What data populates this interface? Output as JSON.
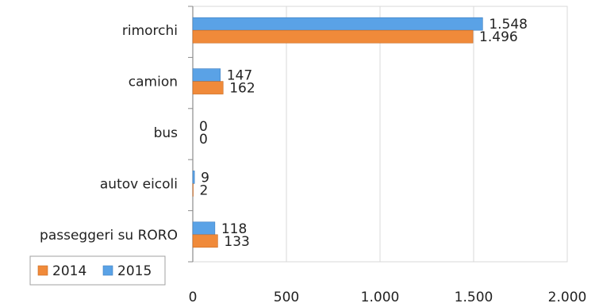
{
  "colors": {
    "series_2014": "#f08a3a",
    "series_2015": "#5aa2e6",
    "grid": "#d9d9d9",
    "axis": "#8c8c8c",
    "text": "#222222"
  },
  "chart_data": {
    "type": "bar",
    "orientation": "horizontal",
    "categories": [
      "rimorchi",
      "camion",
      "bus",
      "autov eicoli",
      "passeggeri su RORO"
    ],
    "series": [
      {
        "name": "2015",
        "values": [
          1548,
          147,
          0,
          9,
          118
        ],
        "labels": [
          "1.548",
          "147",
          "0",
          "9",
          "118"
        ],
        "color": "#5aa2e6"
      },
      {
        "name": "2014",
        "values": [
          1496,
          162,
          0,
          2,
          133
        ],
        "labels": [
          "1.496",
          "162",
          "0",
          "2",
          "133"
        ],
        "color": "#f08a3a"
      }
    ],
    "xlim": [
      0,
      2000
    ],
    "xticks": [
      0,
      500,
      1000,
      1500,
      2000
    ],
    "xtick_labels": [
      "0",
      "500",
      "1.000",
      "1.500",
      "2.000"
    ],
    "grid": true,
    "legend": {
      "placement": "bottom-left",
      "entries": [
        {
          "name": "2014",
          "color": "#f08a3a"
        },
        {
          "name": "2015",
          "color": "#5aa2e6"
        }
      ]
    },
    "title": "",
    "xlabel": "",
    "ylabel": ""
  }
}
